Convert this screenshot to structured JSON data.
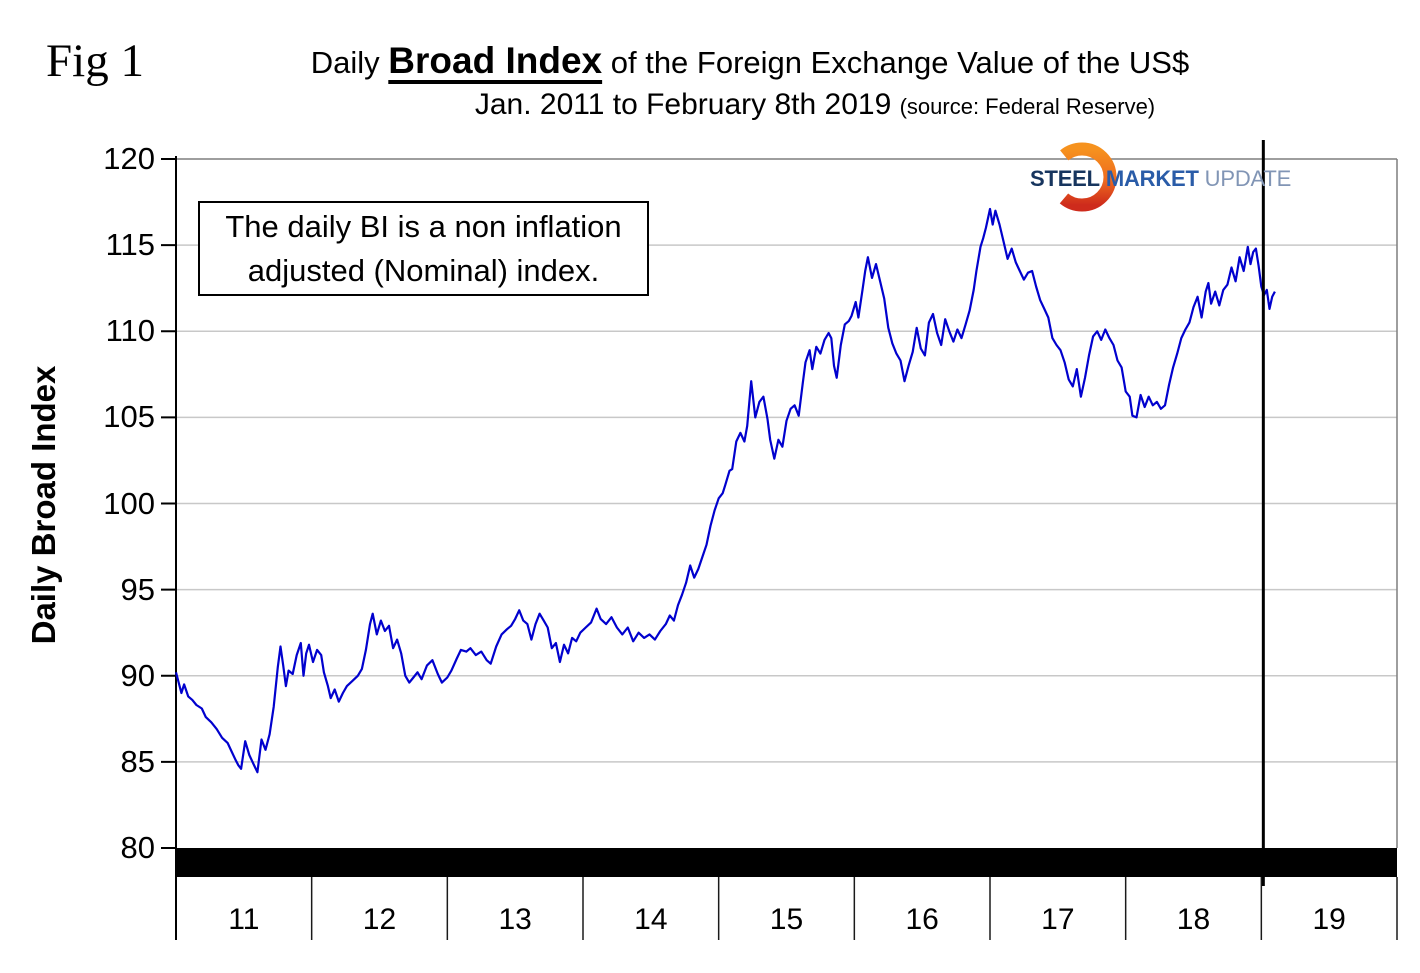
{
  "figure": {
    "fig_label": "Fig 1",
    "title_prefix": "Daily ",
    "title_emphasis": "Broad Index",
    "title_suffix": " of the Foreign Exchange Value of the US$",
    "subtitle": "Jan. 2011 to February 8th 2019 ",
    "subtitle_source": "(source: Federal Reserve)"
  },
  "annotation": {
    "line1": "The daily BI is a non inflation",
    "line2": "adjusted (Nominal) index."
  },
  "logo": {
    "word1": "STEEL",
    "word2": "MARKET",
    "word3": "UPDATE"
  },
  "colors": {
    "line": "#0101CE",
    "grid": "#C8C8C8",
    "frame": "#7F7F7F",
    "axis": "#000000",
    "band": "#000000",
    "logo_orange_top": "#F6921E",
    "logo_orange_bottom": "#CE2B1C"
  },
  "chart_data": {
    "type": "line",
    "title": "Daily Broad Index of the Foreign Exchange Value of the US$, Jan. 2011 to February 8th 2019 (source: Federal Reserve)",
    "xlabel": "",
    "ylabel": "Daily Broad Index",
    "ylim": [
      80,
      120
    ],
    "xlim": [
      2011,
      2020
    ],
    "yticks": [
      80,
      85,
      90,
      95,
      100,
      105,
      110,
      115,
      120
    ],
    "x_tick_labels": [
      "11",
      "12",
      "13",
      "14",
      "15",
      "16",
      "17",
      "18",
      "19"
    ],
    "grid": "horizontal",
    "legend": "none",
    "vline_x": 2019.0,
    "axis_break_bar": true,
    "series": [
      {
        "name": "Daily Broad Index",
        "points": [
          [
            2011.0,
            90.2
          ],
          [
            2011.02,
            89.6
          ],
          [
            2011.04,
            89.0
          ],
          [
            2011.06,
            89.5
          ],
          [
            2011.09,
            88.8
          ],
          [
            2011.12,
            88.6
          ],
          [
            2011.15,
            88.3
          ],
          [
            2011.19,
            88.1
          ],
          [
            2011.22,
            87.6
          ],
          [
            2011.26,
            87.3
          ],
          [
            2011.3,
            86.9
          ],
          [
            2011.34,
            86.4
          ],
          [
            2011.38,
            86.1
          ],
          [
            2011.41,
            85.6
          ],
          [
            2011.44,
            85.1
          ],
          [
            2011.46,
            84.8
          ],
          [
            2011.48,
            84.6
          ],
          [
            2011.51,
            86.2
          ],
          [
            2011.54,
            85.4
          ],
          [
            2011.57,
            84.9
          ],
          [
            2011.6,
            84.4
          ],
          [
            2011.63,
            86.3
          ],
          [
            2011.66,
            85.7
          ],
          [
            2011.69,
            86.6
          ],
          [
            2011.72,
            88.2
          ],
          [
            2011.75,
            90.5
          ],
          [
            2011.77,
            91.7
          ],
          [
            2011.79,
            90.6
          ],
          [
            2011.81,
            89.4
          ],
          [
            2011.83,
            90.3
          ],
          [
            2011.86,
            90.1
          ],
          [
            2011.89,
            91.2
          ],
          [
            2011.92,
            91.9
          ],
          [
            2011.94,
            90.0
          ],
          [
            2011.96,
            91.3
          ],
          [
            2011.98,
            91.8
          ],
          [
            2012.01,
            90.8
          ],
          [
            2012.04,
            91.5
          ],
          [
            2012.07,
            91.2
          ],
          [
            2012.09,
            90.2
          ],
          [
            2012.12,
            89.4
          ],
          [
            2012.14,
            88.7
          ],
          [
            2012.17,
            89.2
          ],
          [
            2012.2,
            88.5
          ],
          [
            2012.23,
            89.0
          ],
          [
            2012.26,
            89.4
          ],
          [
            2012.3,
            89.7
          ],
          [
            2012.34,
            90.0
          ],
          [
            2012.37,
            90.4
          ],
          [
            2012.4,
            91.5
          ],
          [
            2012.43,
            93.0
          ],
          [
            2012.45,
            93.6
          ],
          [
            2012.48,
            92.4
          ],
          [
            2012.51,
            93.2
          ],
          [
            2012.54,
            92.6
          ],
          [
            2012.57,
            92.9
          ],
          [
            2012.6,
            91.6
          ],
          [
            2012.63,
            92.1
          ],
          [
            2012.66,
            91.3
          ],
          [
            2012.69,
            90.0
          ],
          [
            2012.72,
            89.6
          ],
          [
            2012.75,
            89.9
          ],
          [
            2012.78,
            90.2
          ],
          [
            2012.81,
            89.8
          ],
          [
            2012.85,
            90.6
          ],
          [
            2012.89,
            90.9
          ],
          [
            2012.93,
            90.1
          ],
          [
            2012.96,
            89.6
          ],
          [
            2013.0,
            89.9
          ],
          [
            2013.03,
            90.3
          ],
          [
            2013.07,
            91.0
          ],
          [
            2013.1,
            91.5
          ],
          [
            2013.14,
            91.4
          ],
          [
            2013.17,
            91.6
          ],
          [
            2013.21,
            91.2
          ],
          [
            2013.25,
            91.4
          ],
          [
            2013.29,
            90.9
          ],
          [
            2013.32,
            90.7
          ],
          [
            2013.36,
            91.7
          ],
          [
            2013.4,
            92.4
          ],
          [
            2013.44,
            92.7
          ],
          [
            2013.47,
            92.9
          ],
          [
            2013.5,
            93.3
          ],
          [
            2013.53,
            93.8
          ],
          [
            2013.56,
            93.2
          ],
          [
            2013.59,
            93.0
          ],
          [
            2013.62,
            92.1
          ],
          [
            2013.65,
            93.0
          ],
          [
            2013.68,
            93.6
          ],
          [
            2013.71,
            93.2
          ],
          [
            2013.74,
            92.8
          ],
          [
            2013.77,
            91.6
          ],
          [
            2013.8,
            91.9
          ],
          [
            2013.83,
            90.8
          ],
          [
            2013.86,
            91.8
          ],
          [
            2013.89,
            91.3
          ],
          [
            2013.92,
            92.2
          ],
          [
            2013.95,
            92.0
          ],
          [
            2013.98,
            92.5
          ],
          [
            2014.02,
            92.8
          ],
          [
            2014.06,
            93.1
          ],
          [
            2014.1,
            93.9
          ],
          [
            2014.13,
            93.3
          ],
          [
            2014.17,
            93.0
          ],
          [
            2014.21,
            93.4
          ],
          [
            2014.25,
            92.8
          ],
          [
            2014.29,
            92.4
          ],
          [
            2014.33,
            92.8
          ],
          [
            2014.37,
            92.0
          ],
          [
            2014.41,
            92.5
          ],
          [
            2014.45,
            92.2
          ],
          [
            2014.49,
            92.4
          ],
          [
            2014.53,
            92.1
          ],
          [
            2014.57,
            92.6
          ],
          [
            2014.61,
            93.0
          ],
          [
            2014.64,
            93.5
          ],
          [
            2014.67,
            93.2
          ],
          [
            2014.7,
            94.1
          ],
          [
            2014.73,
            94.7
          ],
          [
            2014.76,
            95.4
          ],
          [
            2014.79,
            96.4
          ],
          [
            2014.82,
            95.7
          ],
          [
            2014.85,
            96.2
          ],
          [
            2014.88,
            96.9
          ],
          [
            2014.91,
            97.6
          ],
          [
            2014.94,
            98.7
          ],
          [
            2014.97,
            99.6
          ],
          [
            2015.0,
            100.3
          ],
          [
            2015.03,
            100.6
          ],
          [
            2015.05,
            101.1
          ],
          [
            2015.08,
            101.9
          ],
          [
            2015.1,
            102.0
          ],
          [
            2015.13,
            103.6
          ],
          [
            2015.16,
            104.1
          ],
          [
            2015.19,
            103.6
          ],
          [
            2015.21,
            104.5
          ],
          [
            2015.24,
            107.1
          ],
          [
            2015.27,
            105.0
          ],
          [
            2015.3,
            105.9
          ],
          [
            2015.33,
            106.2
          ],
          [
            2015.36,
            104.9
          ],
          [
            2015.38,
            103.7
          ],
          [
            2015.41,
            102.6
          ],
          [
            2015.44,
            103.7
          ],
          [
            2015.47,
            103.3
          ],
          [
            2015.5,
            104.8
          ],
          [
            2015.53,
            105.5
          ],
          [
            2015.56,
            105.7
          ],
          [
            2015.59,
            105.1
          ],
          [
            2015.62,
            107.0
          ],
          [
            2015.64,
            108.2
          ],
          [
            2015.67,
            108.9
          ],
          [
            2015.69,
            107.8
          ],
          [
            2015.72,
            109.1
          ],
          [
            2015.75,
            108.7
          ],
          [
            2015.78,
            109.5
          ],
          [
            2015.81,
            109.9
          ],
          [
            2015.83,
            109.6
          ],
          [
            2015.85,
            108.0
          ],
          [
            2015.87,
            107.3
          ],
          [
            2015.9,
            109.2
          ],
          [
            2015.93,
            110.4
          ],
          [
            2015.96,
            110.6
          ],
          [
            2015.98,
            110.9
          ],
          [
            2016.01,
            111.7
          ],
          [
            2016.03,
            110.8
          ],
          [
            2016.06,
            112.4
          ],
          [
            2016.08,
            113.5
          ],
          [
            2016.1,
            114.3
          ],
          [
            2016.13,
            113.1
          ],
          [
            2016.16,
            113.9
          ],
          [
            2016.19,
            112.9
          ],
          [
            2016.22,
            111.9
          ],
          [
            2016.25,
            110.2
          ],
          [
            2016.28,
            109.3
          ],
          [
            2016.31,
            108.7
          ],
          [
            2016.34,
            108.3
          ],
          [
            2016.37,
            107.1
          ],
          [
            2016.4,
            108.0
          ],
          [
            2016.43,
            108.8
          ],
          [
            2016.46,
            110.2
          ],
          [
            2016.49,
            109.0
          ],
          [
            2016.52,
            108.6
          ],
          [
            2016.55,
            110.5
          ],
          [
            2016.58,
            111.0
          ],
          [
            2016.61,
            109.9
          ],
          [
            2016.64,
            109.2
          ],
          [
            2016.67,
            110.7
          ],
          [
            2016.7,
            110.0
          ],
          [
            2016.73,
            109.4
          ],
          [
            2016.76,
            110.1
          ],
          [
            2016.79,
            109.6
          ],
          [
            2016.82,
            110.4
          ],
          [
            2016.85,
            111.2
          ],
          [
            2016.88,
            112.4
          ],
          [
            2016.9,
            113.5
          ],
          [
            2016.93,
            114.9
          ],
          [
            2016.95,
            115.4
          ],
          [
            2016.97,
            116.0
          ],
          [
            2017.0,
            117.1
          ],
          [
            2017.02,
            116.2
          ],
          [
            2017.04,
            117.0
          ],
          [
            2017.07,
            116.2
          ],
          [
            2017.1,
            115.2
          ],
          [
            2017.13,
            114.2
          ],
          [
            2017.16,
            114.8
          ],
          [
            2017.19,
            114.0
          ],
          [
            2017.22,
            113.5
          ],
          [
            2017.25,
            113.0
          ],
          [
            2017.28,
            113.4
          ],
          [
            2017.31,
            113.5
          ],
          [
            2017.34,
            112.6
          ],
          [
            2017.37,
            111.8
          ],
          [
            2017.4,
            111.3
          ],
          [
            2017.43,
            110.8
          ],
          [
            2017.46,
            109.6
          ],
          [
            2017.49,
            109.2
          ],
          [
            2017.52,
            108.9
          ],
          [
            2017.55,
            108.2
          ],
          [
            2017.58,
            107.2
          ],
          [
            2017.61,
            106.8
          ],
          [
            2017.64,
            107.8
          ],
          [
            2017.67,
            106.2
          ],
          [
            2017.7,
            107.3
          ],
          [
            2017.73,
            108.6
          ],
          [
            2017.76,
            109.7
          ],
          [
            2017.79,
            110.0
          ],
          [
            2017.82,
            109.5
          ],
          [
            2017.85,
            110.1
          ],
          [
            2017.88,
            109.6
          ],
          [
            2017.91,
            109.2
          ],
          [
            2017.94,
            108.3
          ],
          [
            2017.97,
            107.9
          ],
          [
            2018.0,
            106.5
          ],
          [
            2018.03,
            106.2
          ],
          [
            2018.05,
            105.1
          ],
          [
            2018.08,
            105.0
          ],
          [
            2018.11,
            106.3
          ],
          [
            2018.14,
            105.6
          ],
          [
            2018.17,
            106.2
          ],
          [
            2018.2,
            105.7
          ],
          [
            2018.23,
            105.9
          ],
          [
            2018.26,
            105.5
          ],
          [
            2018.29,
            105.7
          ],
          [
            2018.32,
            106.9
          ],
          [
            2018.35,
            107.9
          ],
          [
            2018.38,
            108.7
          ],
          [
            2018.41,
            109.6
          ],
          [
            2018.44,
            110.1
          ],
          [
            2018.47,
            110.5
          ],
          [
            2018.5,
            111.4
          ],
          [
            2018.53,
            112.0
          ],
          [
            2018.56,
            110.8
          ],
          [
            2018.59,
            112.3
          ],
          [
            2018.61,
            112.8
          ],
          [
            2018.63,
            111.6
          ],
          [
            2018.66,
            112.3
          ],
          [
            2018.69,
            111.5
          ],
          [
            2018.72,
            112.4
          ],
          [
            2018.75,
            112.7
          ],
          [
            2018.78,
            113.7
          ],
          [
            2018.81,
            112.9
          ],
          [
            2018.84,
            114.3
          ],
          [
            2018.87,
            113.5
          ],
          [
            2018.9,
            114.9
          ],
          [
            2018.92,
            113.9
          ],
          [
            2018.94,
            114.6
          ],
          [
            2018.96,
            114.8
          ],
          [
            2018.98,
            113.8
          ],
          [
            2019.0,
            112.6
          ],
          [
            2019.02,
            112.1
          ],
          [
            2019.04,
            112.4
          ],
          [
            2019.06,
            111.3
          ],
          [
            2019.08,
            112.0
          ],
          [
            2019.1,
            112.3
          ]
        ]
      }
    ]
  }
}
